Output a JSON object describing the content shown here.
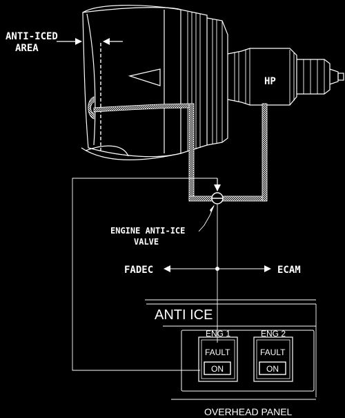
{
  "labels": {
    "anti_iced_area_line1": "ANTI-ICED",
    "anti_iced_area_line2": "AREA",
    "hp": "HP",
    "valve_line1": "ENGINE ANTI-ICE",
    "valve_line2": "VALVE",
    "fadec": "FADEC",
    "ecam": "ECAM",
    "panel_title": "ANTI ICE",
    "eng1": "ENG 1",
    "eng2": "ENG 2",
    "fault": "FAULT",
    "on": "ON",
    "overhead_panel": "OVERHEAD PANEL"
  },
  "colors": {
    "background": "#000000",
    "line": "#ffffff"
  }
}
